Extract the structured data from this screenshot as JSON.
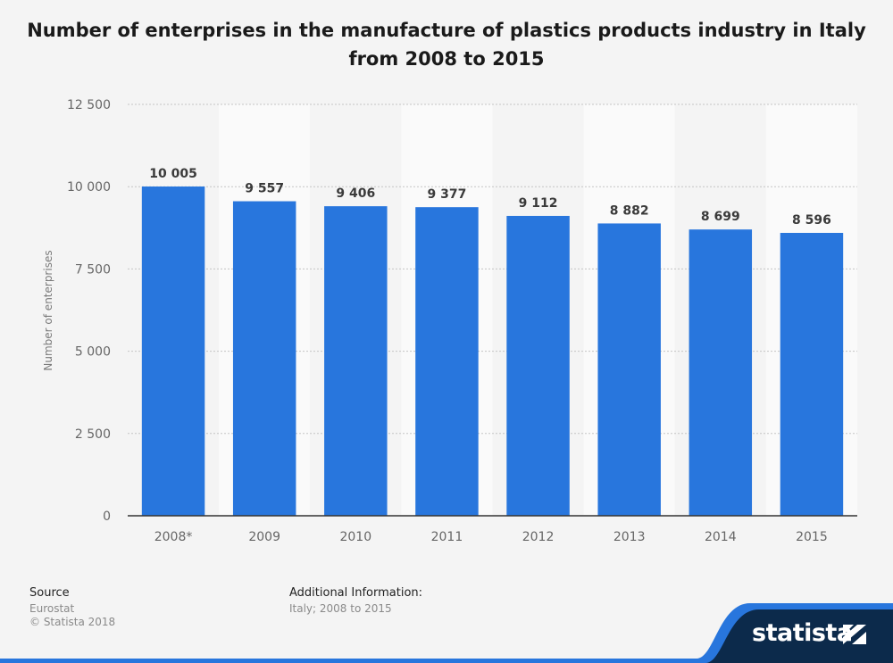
{
  "title_line1": "Number of enterprises in the manufacture of plastics products industry in Italy",
  "title_line2": "from 2008 to 2015",
  "chart_data": {
    "type": "bar",
    "categories": [
      "2008*",
      "2009",
      "2010",
      "2011",
      "2012",
      "2013",
      "2014",
      "2015"
    ],
    "values": [
      10005,
      9557,
      9406,
      9377,
      9112,
      8882,
      8699,
      8596
    ],
    "value_labels": [
      "10 005",
      "9 557",
      "9 406",
      "9 377",
      "9 112",
      "8 882",
      "8 699",
      "8 596"
    ],
    "ylabel": "Number of enterprises",
    "ylim": [
      0,
      12500
    ],
    "yticks": [
      0,
      2500,
      5000,
      7500,
      10000,
      12500
    ],
    "ytick_labels": [
      "0",
      "2 500",
      "5 000",
      "7 500",
      "10 000",
      "12 500"
    ],
    "grid": true,
    "bar_color": "#2876dd"
  },
  "footer": {
    "source_label": "Source",
    "source_lines": [
      "Eurostat",
      "© Statista 2018"
    ],
    "additional_label": "Additional Information:",
    "additional_text": "Italy; 2008 to 2015"
  },
  "brand": {
    "name": "statista",
    "dark_color": "#0c2a4b",
    "accent_color": "#2876dd"
  }
}
